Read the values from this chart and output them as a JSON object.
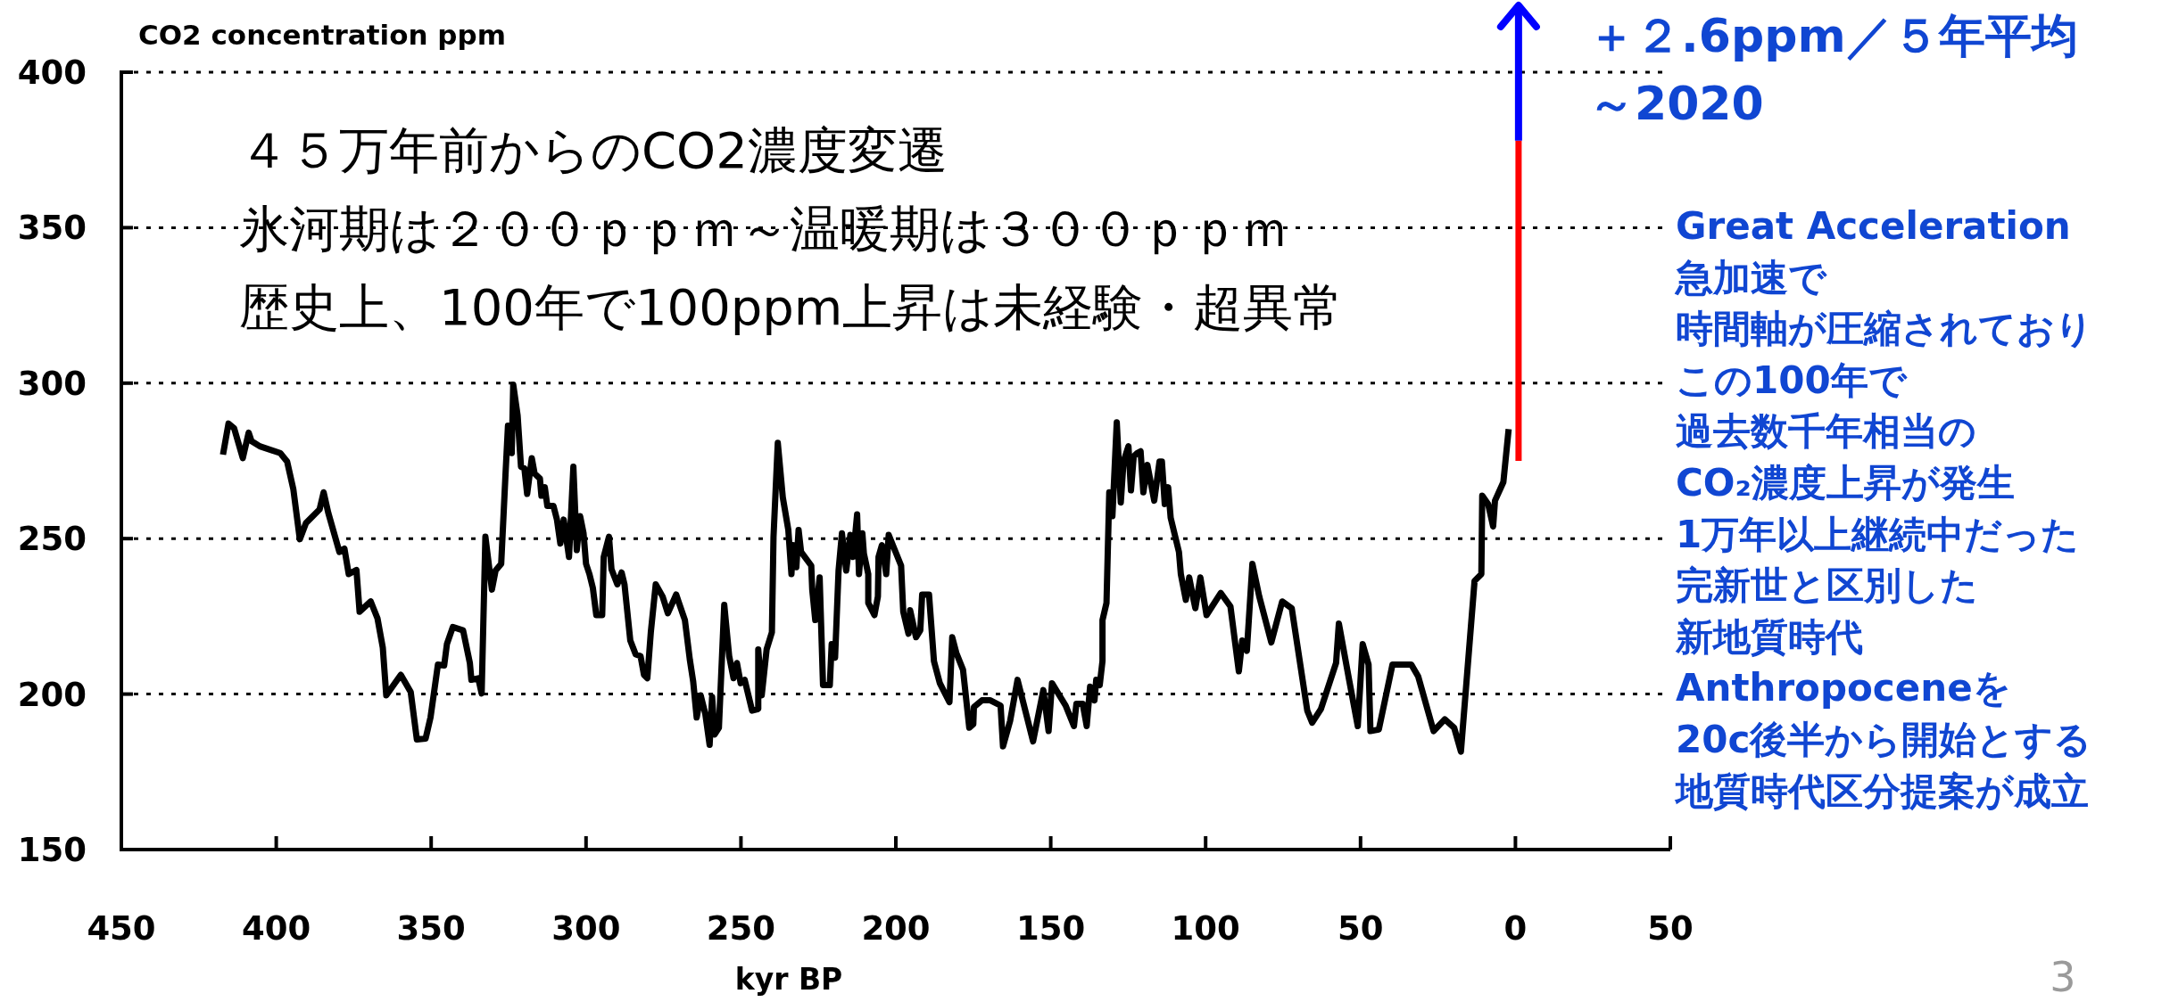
{
  "chart_data": {
    "type": "line",
    "xlabel": "kyr BP",
    "ylabel": "CO2 concentration ppm",
    "xlim": [
      450,
      -50
    ],
    "xticks": [
      450,
      400,
      350,
      300,
      250,
      200,
      150,
      100,
      50,
      0,
      {
        "value": -50,
        "label": "50"
      }
    ],
    "ylim": [
      150,
      400
    ],
    "yticks": [
      150,
      200,
      250,
      300,
      350,
      400
    ],
    "grid": "y",
    "series": [
      {
        "color": "#000000",
        "x": [
          417.2,
          415.4,
          413.6,
          410.8,
          408.9,
          408.0,
          405.3,
          398.7,
          396.5,
          394.5,
          392.4,
          390.4,
          386.0,
          384.7,
          383.2,
          379.6,
          378.0,
          376.6,
          374.1,
          373.1,
          369.5,
          367.3,
          365.6,
          364.5,
          359.8,
          356.6,
          354.6,
          351.8,
          350.2,
          347.8,
          345.8,
          344.9,
          343.0,
          339.7,
          337.5,
          337.0,
          334.8,
          333.7,
          332.5,
          330.4,
          329.2,
          327.4,
          326.0,
          325.2,
          324.0,
          323.5,
          322.1,
          321.0,
          319.9,
          319.0,
          317.5,
          316.6,
          314.9,
          314.4,
          313.3,
          312.5,
          310.5,
          309.4,
          308.3,
          307.2,
          305.5,
          304.1,
          303.0,
          301.9,
          300.8,
          300.0,
          298.9,
          297.8,
          296.7,
          294.8,
          294.3,
          292.6,
          291.8,
          289.9,
          288.5,
          287.6,
          285.7,
          284.0,
          282.4,
          281.3,
          280.2,
          279.1,
          277.5,
          275.3,
          273.6,
          270.9,
          268.1,
          266.5,
          265.4,
          264.3,
          263.0,
          261.5,
          260.1,
          259.3,
          258.5,
          257.1,
          255.4,
          253.8,
          252.4,
          251.3,
          250.1,
          248.8,
          246.4,
          244.4,
          244.4,
          243.3,
          241.7,
          240.0,
          239.5,
          238.1,
          236.5,
          234.7,
          233.7,
          233.2,
          232.1,
          231.4,
          230.6,
          227.3,
          227.0,
          226.0,
          224.6,
          223.5,
          221.3,
          220.7,
          219.6,
          218.5,
          217.4,
          216.0,
          214.7,
          213.8,
          212.5,
          211.9,
          210.8,
          210.3,
          208.9,
          208.9,
          206.9,
          205.8,
          205.6,
          204.5,
          203.1,
          202.3,
          198.3,
          197.6,
          195.9,
          195.4,
          193.5,
          192.1,
          191.5,
          189.3,
          187.7,
          185.8,
          182.7,
          181.8,
          180.5,
          178.3,
          176.3,
          175.0,
          174.8,
          172.2,
          169.5,
          166.2,
          165.4,
          163.1,
          160.7,
          155.7,
          152.4,
          150.7,
          149.6,
          145.2,
          142.5,
          141.7,
          139.7,
          138.4,
          137.3,
          135.9,
          135.3,
          134.2,
          133.3,
          133.3,
          132.0,
          131.1,
          130.1,
          128.7,
          127.4,
          126.5,
          124.9,
          124.1,
          123.2,
          122.1,
          121.0,
          120.1,
          118.8,
          116.6,
          114.9,
          114.1,
          113.2,
          112.1,
          111.3,
          108.6,
          108.0,
          106.4,
          105.3,
          103.9,
          103.3,
          101.7,
          99.7,
          95.1,
          92.0,
          89.3,
          88.2,
          86.7,
          84.9,
          82.7,
          78.8,
          75.3,
          72.2,
          67.2,
          65.6,
          62.8,
          57.9,
          57.0,
          53.7,
          50.9,
          49.3,
          47.4,
          46.8,
          44.1,
          39.7,
          33.6,
          31.4,
          26.4,
          22.8,
          19.8,
          17.6,
          13.2,
          11.0,
          10.7,
          8.8,
          7.2,
          6.6,
          3.9,
          2.2
        ],
        "values": [
          277,
          287,
          285.5,
          275.9,
          284.1,
          281.4,
          279.7,
          277.5,
          274.8,
          266,
          249.8,
          255,
          259.4,
          264.9,
          258.3,
          245.7,
          246.8,
          238.6,
          239.9,
          226.5,
          229.8,
          224.3,
          215,
          199.6,
          206.2,
          200.7,
          185.4,
          185.7,
          192.5,
          209.5,
          209.2,
          216.1,
          221.6,
          220.5,
          210,
          204.6,
          205.1,
          200.2,
          250.6,
          233.6,
          239.7,
          241.9,
          270.4,
          286.3,
          277.5,
          299.5,
          289.6,
          273.1,
          272.6,
          264.4,
          275.9,
          270.9,
          269.3,
          263.8,
          266.5,
          260.5,
          260.5,
          256.1,
          248.4,
          256.1,
          244.1,
          273.1,
          246.3,
          257.2,
          251.7,
          241.9,
          238.6,
          234.2,
          225.4,
          225.4,
          244.1,
          250.6,
          240.2,
          235.3,
          239.1,
          235.3,
          217.2,
          212.8,
          212.2,
          206.2,
          205.1,
          219.9,
          235.3,
          231.4,
          226,
          232,
          223.8,
          211.1,
          204,
          192.5,
          199.6,
          193.6,
          183.7,
          199.1,
          187,
          189.2,
          228.7,
          212.2,
          205.1,
          210,
          203.5,
          204.6,
          194.7,
          195.2,
          214.4,
          199.6,
          214.4,
          219.9,
          250.6,
          280.8,
          263.3,
          252.8,
          238.6,
          247.9,
          240.8,
          252.8,
          245.7,
          241.3,
          233.6,
          223.8,
          237.5,
          202.9,
          202.9,
          216.1,
          211.7,
          239.7,
          251.7,
          239.7,
          251.2,
          244.1,
          257.8,
          238.6,
          251.7,
          245.2,
          238.6,
          229.3,
          225.4,
          231.4,
          244.1,
          247.9,
          238.6,
          251.2,
          241.3,
          226.5,
          219.4,
          227,
          218.3,
          220.5,
          232,
          232,
          210.6,
          203.5,
          197.4,
          218.3,
          213.3,
          207.8,
          189.2,
          190.3,
          195.8,
          198,
          198,
          196.3,
          183.2,
          191.4,
          204.6,
          184.8,
          201.3,
          188.1,
          203.5,
          196.3,
          189.7,
          196.9,
          196.9,
          189.7,
          202.4,
          198,
          204.6,
          202.9,
          210.6,
          223.8,
          229.3,
          264.9,
          257.2,
          287.4,
          261.6,
          274.8,
          279.7,
          265.5,
          276.4,
          277.5,
          278.1,
          264.9,
          273.7,
          262.2,
          274.8,
          274.8,
          261.1,
          266.5,
          256.7,
          245.7,
          238.6,
          230.3,
          237.5,
          230.3,
          227.6,
          237.5,
          225.4,
          232.5,
          228.2,
          207.3,
          217.2,
          213.9,
          241.9,
          231.4,
          216.6,
          229.8,
          227.6,
          194.7,
          190.8,
          195.2,
          210,
          222.7,
          204.6,
          189.7,
          216.1,
          209.5,
          188.1,
          188.6,
          209.5,
          209.5,
          205.7,
          188.1,
          191.9,
          189.2,
          181.5,
          236.4,
          238.6,
          263.8,
          261.1,
          253.9,
          262.2,
          268.2,
          285.2
        ]
      },
      {
        "color": "#ff0000",
        "x": [
          -1,
          -1
        ],
        "values": [
          275,
          378
        ]
      }
    ],
    "annotations": [
      "４５万年前からのCO2濃度変遷",
      "氷河期は２００ｐｐｍ～温暖期は３００ｐｐｍ",
      "歴史上、100年で100ppm上昇は未経験・超異常",
      {
        "text": "＋２.6ppm／５年平均",
        "x": -1,
        "y": 378
      },
      "～2020",
      "Great Acceleration",
      "急加速で",
      "時間軸が圧縮されており",
      "この100年で",
      "過去数千年相当の",
      "CO₂濃度上昇が発生",
      "1万年以上継続中だった",
      "完新世と区別した",
      "新地質時代",
      "Anthropoceneを",
      "20c後半から開始とする",
      "地質時代区分提案が成立",
      "3"
    ]
  }
}
